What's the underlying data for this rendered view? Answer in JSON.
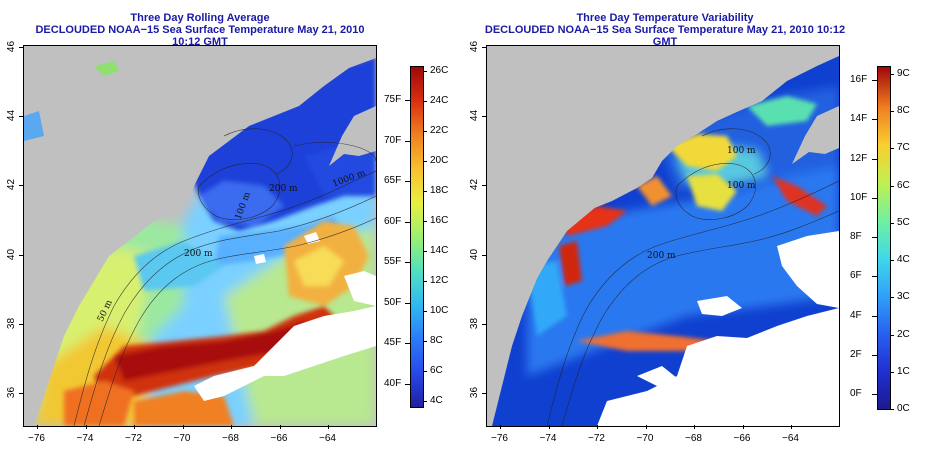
{
  "left_panel": {
    "title": "Three Day Rolling Average",
    "subtitle": "DECLOUDED NOAA−15 Sea Surface Temperature May 21, 2010 10:12 GMT",
    "x_ticks": [
      "−76",
      "−74",
      "−72",
      "−70",
      "−68",
      "−66",
      "−64"
    ],
    "y_ticks": [
      "36",
      "38",
      "40",
      "42",
      "44",
      "46"
    ],
    "colorbar_c": [
      "26C",
      "24C",
      "22C",
      "20C",
      "18C",
      "16C",
      "14C",
      "12C",
      "10C",
      "8C",
      "6C",
      "4C"
    ],
    "colorbar_f": [
      "75F",
      "70F",
      "65F",
      "60F",
      "55F",
      "50F",
      "45F",
      "40F"
    ],
    "contour_labels": [
      "50 m",
      "200 m",
      "100 m",
      "1000 m",
      "200 m"
    ]
  },
  "right_panel": {
    "title": "Three Day Temperature Variability",
    "subtitle": "DECLOUDED NOAA−15 Sea Surface Temperature May 21, 2010 10:12 GMT",
    "x_ticks": [
      "−76",
      "−74",
      "−72",
      "−70",
      "−68",
      "−66",
      "−64"
    ],
    "y_ticks": [
      "36",
      "38",
      "40",
      "42",
      "44",
      "46"
    ],
    "colorbar_f": [
      "16F",
      "14F",
      "12F",
      "10F",
      "8F",
      "6F",
      "4F",
      "2F",
      "0F"
    ],
    "colorbar_c": [
      "9C",
      "8C",
      "7C",
      "6C",
      "5C",
      "4C",
      "3C",
      "2C",
      "1C",
      "0C"
    ],
    "contour_labels": [
      "100 m",
      "200 m",
      "100 m"
    ]
  },
  "colors": {
    "land": "#c0c0c0",
    "title": "#1a1aa6"
  }
}
